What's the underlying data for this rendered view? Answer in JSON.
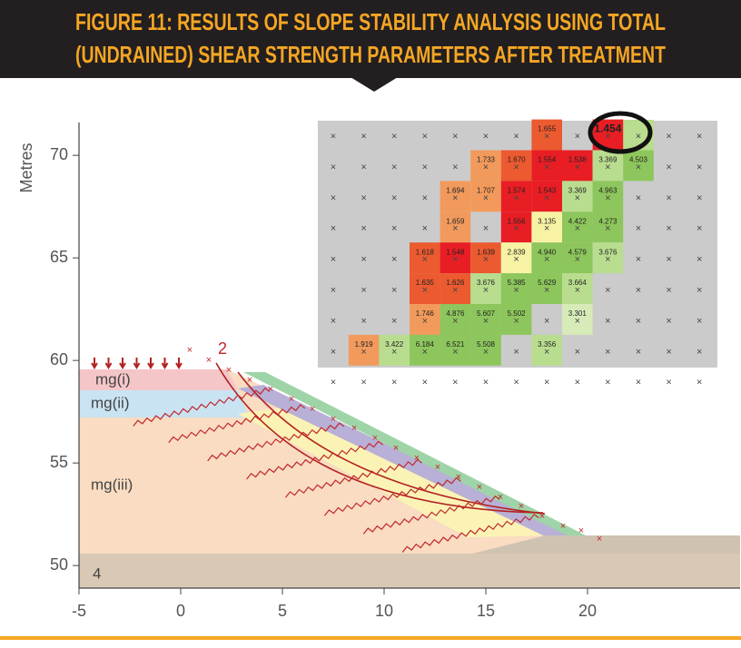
{
  "chart_data": {
    "type": "section-grid",
    "title_lines": [
      "FIGURE 11: RESULTS OF SLOPE STABILITY ANALYSIS USING TOTAL",
      "(UNDRAINED) SHEAR STRENGTH PARAMETERS AFTER TREATMENT"
    ],
    "y_label": "Metres",
    "layers": [
      "mg(i)",
      "mg(ii)",
      "mg(iii)",
      "4"
    ],
    "slip_label": "2",
    "xlim": [
      -5,
      27.5
    ],
    "ylim": [
      48.9,
      71.6
    ],
    "xticks": [
      -5,
      0,
      5,
      10,
      15,
      20
    ],
    "yticks": [
      50,
      55,
      60,
      65,
      70
    ],
    "grid_x": [
      7.5,
      9,
      10.5,
      12,
      13.5,
      15,
      16.5,
      18,
      19.5,
      21,
      22.5,
      24,
      25.5
    ],
    "grid_y": [
      59,
      60.5,
      62,
      63.5,
      65,
      66.5,
      68,
      69.5,
      71
    ],
    "cells": [
      {
        "x": 18,
        "y": 71,
        "value": 1.655,
        "label": "1.655",
        "color": "#ec5a30"
      },
      {
        "x": 21,
        "y": 71,
        "value": 1.454,
        "label": "1.454",
        "color": "#e81e24"
      },
      {
        "x": 15,
        "y": 69.5,
        "value": 1.733,
        "label": "1.733",
        "color": "#f29a5c"
      },
      {
        "x": 16.5,
        "y": 69.5,
        "value": 1.67,
        "label": "1.670",
        "color": "#ec5a30"
      },
      {
        "x": 18,
        "y": 69.5,
        "value": 1.554,
        "label": "1.554",
        "color": "#e81e24"
      },
      {
        "x": 19.5,
        "y": 69.5,
        "value": 1.538,
        "label": "1.538",
        "color": "#e81e24"
      },
      {
        "x": 21,
        "y": 69.5,
        "value": 3.369,
        "label": "3.369",
        "color": "#b9dd8f"
      },
      {
        "x": 22.5,
        "y": 69.5,
        "value": 4.503,
        "label": "4.503",
        "color": "#8dc65c"
      },
      {
        "x": 13.5,
        "y": 68,
        "value": 1.694,
        "label": "1.694",
        "color": "#f29a5c"
      },
      {
        "x": 15,
        "y": 68,
        "value": 1.707,
        "label": "1.707",
        "color": "#f29a5c"
      },
      {
        "x": 16.5,
        "y": 68,
        "value": 1.574,
        "label": "1.574",
        "color": "#e81e24"
      },
      {
        "x": 18,
        "y": 68,
        "value": 1.543,
        "label": "1.543",
        "color": "#e81e24"
      },
      {
        "x": 19.5,
        "y": 68,
        "value": 3.369,
        "label": "3.369",
        "color": "#b9dd8f"
      },
      {
        "x": 21,
        "y": 68,
        "value": 4.963,
        "label": "4.963",
        "color": "#8dc65c"
      },
      {
        "x": 13.5,
        "y": 66.5,
        "value": 1.659,
        "label": "1.659",
        "color": "#f29a5c"
      },
      {
        "x": 16.5,
        "y": 66.5,
        "value": 1.556,
        "label": "1.556",
        "color": "#e81e24"
      },
      {
        "x": 18,
        "y": 66.5,
        "value": 3.135,
        "label": "3.135",
        "color": "#f8f3a4"
      },
      {
        "x": 19.5,
        "y": 66.5,
        "value": 4.422,
        "label": "4.422",
        "color": "#8dc65c"
      },
      {
        "x": 21,
        "y": 66.5,
        "value": 4.273,
        "label": "4.273",
        "color": "#8dc65c"
      },
      {
        "x": 12,
        "y": 65,
        "value": 1.618,
        "label": "1.618",
        "color": "#ec5a30"
      },
      {
        "x": 13.5,
        "y": 65,
        "value": 1.548,
        "label": "1.548",
        "color": "#e81e24"
      },
      {
        "x": 15,
        "y": 65,
        "value": 1.639,
        "label": "1.639",
        "color": "#ec5a30"
      },
      {
        "x": 16.5,
        "y": 65,
        "value": 2.839,
        "label": "2.839",
        "color": "#f8f3a4"
      },
      {
        "x": 18,
        "y": 65,
        "value": 4.94,
        "label": "4.940",
        "color": "#8dc65c"
      },
      {
        "x": 19.5,
        "y": 65,
        "value": 4.579,
        "label": "4.579",
        "color": "#8dc65c"
      },
      {
        "x": 21,
        "y": 65,
        "value": 3.676,
        "label": "3.676",
        "color": "#b9dd8f"
      },
      {
        "x": 12,
        "y": 63.5,
        "value": 1.635,
        "label": "1.635",
        "color": "#ec5a30"
      },
      {
        "x": 13.5,
        "y": 63.5,
        "value": 1.626,
        "label": "1.626",
        "color": "#ec5a30"
      },
      {
        "x": 15,
        "y": 63.5,
        "value": 3.676,
        "label": "3.676",
        "color": "#b9dd8f"
      },
      {
        "x": 16.5,
        "y": 63.5,
        "value": 5.385,
        "label": "5.385",
        "color": "#8dc65c"
      },
      {
        "x": 18,
        "y": 63.5,
        "value": 5.629,
        "label": "5.629",
        "color": "#8dc65c"
      },
      {
        "x": 19.5,
        "y": 63.5,
        "value": 3.664,
        "label": "3.664",
        "color": "#b9dd8f"
      },
      {
        "x": 12,
        "y": 62,
        "value": 1.746,
        "label": "1.746",
        "color": "#f29a5c"
      },
      {
        "x": 13.5,
        "y": 62,
        "value": 4.876,
        "label": "4.876",
        "color": "#8dc65c"
      },
      {
        "x": 15,
        "y": 62,
        "value": 5.607,
        "label": "5.607",
        "color": "#8dc65c"
      },
      {
        "x": 16.5,
        "y": 62,
        "value": 5.502,
        "label": "5.502",
        "color": "#8dc65c"
      },
      {
        "x": 19.5,
        "y": 62,
        "value": 3.301,
        "label": "3.301",
        "color": "#d6ebb8"
      },
      {
        "x": 9,
        "y": 60.5,
        "value": 1.919,
        "label": "1.919",
        "color": "#f29a5c"
      },
      {
        "x": 10.5,
        "y": 60.5,
        "value": 3.422,
        "label": "3.422",
        "color": "#b9dd8f"
      },
      {
        "x": 12,
        "y": 60.5,
        "value": 6.184,
        "label": "6.184",
        "color": "#8dc65c"
      },
      {
        "x": 13.5,
        "y": 60.5,
        "value": 6.521,
        "label": "6.521",
        "color": "#8dc65c"
      },
      {
        "x": 15,
        "y": 60.5,
        "value": 5.508,
        "label": "5.508",
        "color": "#8dc65c"
      },
      {
        "x": 18,
        "y": 60.5,
        "value": 3.356,
        "label": "3.356",
        "color": "#b9dd8f"
      }
    ]
  }
}
